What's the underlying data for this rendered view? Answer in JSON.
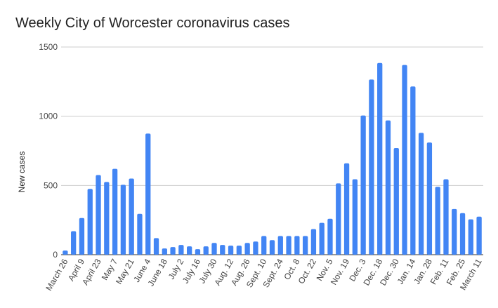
{
  "chart_data": {
    "type": "bar",
    "title": "Weekly City of Worcester coronavirus cases",
    "xlabel": "",
    "ylabel": "New cases",
    "ylim": [
      0,
      1500
    ],
    "yticks": [
      "0",
      "500",
      "1000",
      "1500"
    ],
    "grid": true,
    "legend": "none",
    "bar_color": "#4285f4",
    "categories": [
      "March 26",
      "April 2",
      "April 9",
      "April 16",
      "April 23",
      "April 30",
      "May 7",
      "May 14",
      "May 21",
      "May 28",
      "June 4",
      "June 11",
      "June 18",
      "June 25",
      "July 2",
      "July 9",
      "July 16",
      "July 23",
      "July 30",
      "Aug. 6",
      "Aug. 12",
      "Aug. 19",
      "Aug. 26",
      "Sept. 2",
      "Sept. 10",
      "Sept. 17",
      "Sept. 24",
      "Oct. 1",
      "Oct. 8",
      "Oct. 15",
      "Oct. 22",
      "Oct. 29",
      "Nov. 5",
      "Nov. 12",
      "Nov. 19",
      "Nov. 26",
      "Dec. 3",
      "Dec. 10",
      "Dec. 18",
      "Dec. 24",
      "Dec. 30",
      "Jan. 7",
      "Jan. 14",
      "Jan. 21",
      "Jan. 28",
      "Feb. 4",
      "Feb. 11",
      "Feb. 18",
      "Feb. 25",
      "March 4",
      "March 11"
    ],
    "xtick_labels": [
      "March 26",
      "",
      "April 9",
      "",
      "April 23",
      "",
      "May 7",
      "",
      "May 21",
      "",
      "June 4",
      "",
      "June 18",
      "",
      "July 2",
      "",
      "July 16",
      "",
      "July 30",
      "",
      "Aug. 12",
      "",
      "Aug. 26",
      "",
      "Sept. 10",
      "",
      "Sept. 24",
      "",
      "Oct. 8",
      "",
      "Oct. 22",
      "",
      "Nov. 5",
      "",
      "Nov. 19",
      "",
      "Dec. 3",
      "",
      "Dec. 18",
      "",
      "Dec. 30",
      "",
      "Jan. 14",
      "",
      "Jan. 28",
      "",
      "Feb. 11",
      "",
      "Feb. 25",
      "",
      "March 11"
    ],
    "values": [
      30,
      170,
      265,
      475,
      575,
      525,
      620,
      505,
      550,
      295,
      875,
      120,
      45,
      55,
      70,
      60,
      40,
      60,
      85,
      70,
      65,
      65,
      85,
      95,
      135,
      105,
      135,
      135,
      135,
      135,
      185,
      230,
      260,
      515,
      660,
      545,
      1005,
      1265,
      1385,
      970,
      770,
      1370,
      1215,
      880,
      810,
      490,
      545,
      330,
      300,
      255,
      275
    ]
  }
}
